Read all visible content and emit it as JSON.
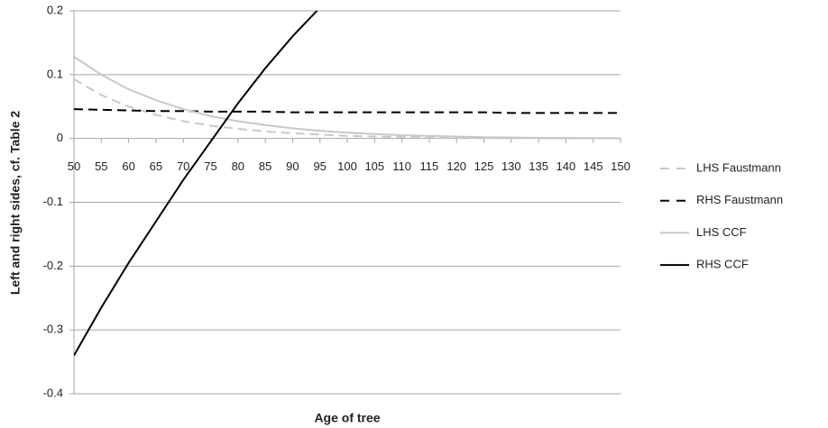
{
  "chart_data": {
    "type": "line",
    "x_label": "Age of tree",
    "y_label": "Left and right sides, cf. Table 2",
    "categories": [
      50,
      55,
      60,
      65,
      70,
      75,
      80,
      85,
      90,
      95,
      100,
      105,
      110,
      115,
      120,
      125,
      130,
      135,
      140,
      145,
      150
    ],
    "ylim": [
      -0.4,
      0.2
    ],
    "yticks": [
      -0.4,
      -0.3,
      -0.2,
      -0.1,
      0,
      0.1,
      0.2
    ],
    "grid": true,
    "legend": "right",
    "series": [
      {
        "name": "LHS Faustmann",
        "color": "#c8c8c8",
        "style": "dashed",
        "values": [
          0.093,
          0.068,
          0.05,
          0.037,
          0.027,
          0.02,
          0.015,
          0.011,
          0.008,
          0.006,
          0.004,
          0.003,
          0.002,
          0.0015,
          0.001,
          0.0008,
          0.0006,
          0.0004,
          0.0003,
          0.0002,
          0.0002
        ]
      },
      {
        "name": "RHS Faustmann",
        "color": "#000000",
        "style": "dashed",
        "values": [
          0.046,
          0.045,
          0.044,
          0.043,
          0.043,
          0.042,
          0.042,
          0.042,
          0.041,
          0.041,
          0.041,
          0.041,
          0.041,
          0.041,
          0.041,
          0.041,
          0.04,
          0.04,
          0.04,
          0.04,
          0.04
        ]
      },
      {
        "name": "LHS CCF",
        "color": "#c8c8c8",
        "style": "solid",
        "values": [
          0.128,
          0.1,
          0.077,
          0.06,
          0.046,
          0.035,
          0.027,
          0.021,
          0.016,
          0.012,
          0.009,
          0.007,
          0.005,
          0.004,
          0.003,
          0.002,
          0.0015,
          0.001,
          0.0008,
          0.0006,
          0.0004
        ]
      },
      {
        "name": "RHS CCF",
        "color": "#000000",
        "style": "solid",
        "values": [
          -0.34,
          -0.265,
          -0.195,
          -0.13,
          -0.065,
          -0.005,
          0.055,
          0.11,
          0.16,
          0.205,
          null,
          null,
          null,
          null,
          null,
          null,
          null,
          null,
          null,
          null,
          null
        ]
      }
    ]
  }
}
